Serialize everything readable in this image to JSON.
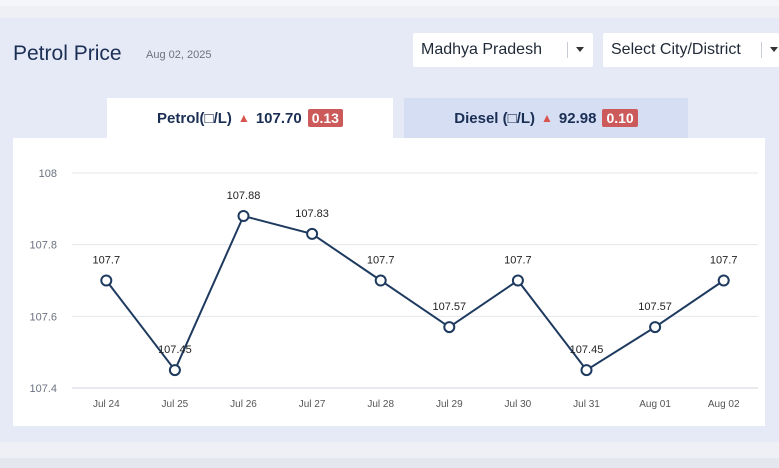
{
  "header": {
    "title": "Petrol Price",
    "date": "Aug 02, 2025"
  },
  "selects": {
    "state": "Madhya Pradesh",
    "city": "Select City/District"
  },
  "tabs": [
    {
      "label": "Petrol(□/L)",
      "price": "107.70",
      "change": "0.13",
      "active": true
    },
    {
      "label": "Diesel (□/L)",
      "price": "92.98",
      "change": "0.10",
      "active": false
    }
  ],
  "colors": {
    "line": "#1e3a5f",
    "badge": "#cc5a5a",
    "up_arrow": "#d9534f",
    "panel": "#e6eaf7"
  },
  "chart_data": {
    "type": "line",
    "categories": [
      "Jul 24",
      "Jul 25",
      "Jul 26",
      "Jul 27",
      "Jul 28",
      "Jul 29",
      "Jul 30",
      "Jul 31",
      "Aug 01",
      "Aug 02"
    ],
    "values": [
      107.7,
      107.45,
      107.88,
      107.83,
      107.7,
      107.57,
      107.7,
      107.45,
      107.57,
      107.7
    ],
    "point_labels": [
      "107.7",
      "107.45",
      "107.88",
      "107.83",
      "107.7",
      "107.57",
      "107.7",
      "107.45",
      "107.57",
      "107.7"
    ],
    "yticks": [
      "108",
      "107.8",
      "107.6",
      "107.4"
    ],
    "ylim": [
      107.4,
      108
    ],
    "grid": true,
    "title": "",
    "xlabel": "",
    "ylabel": ""
  }
}
